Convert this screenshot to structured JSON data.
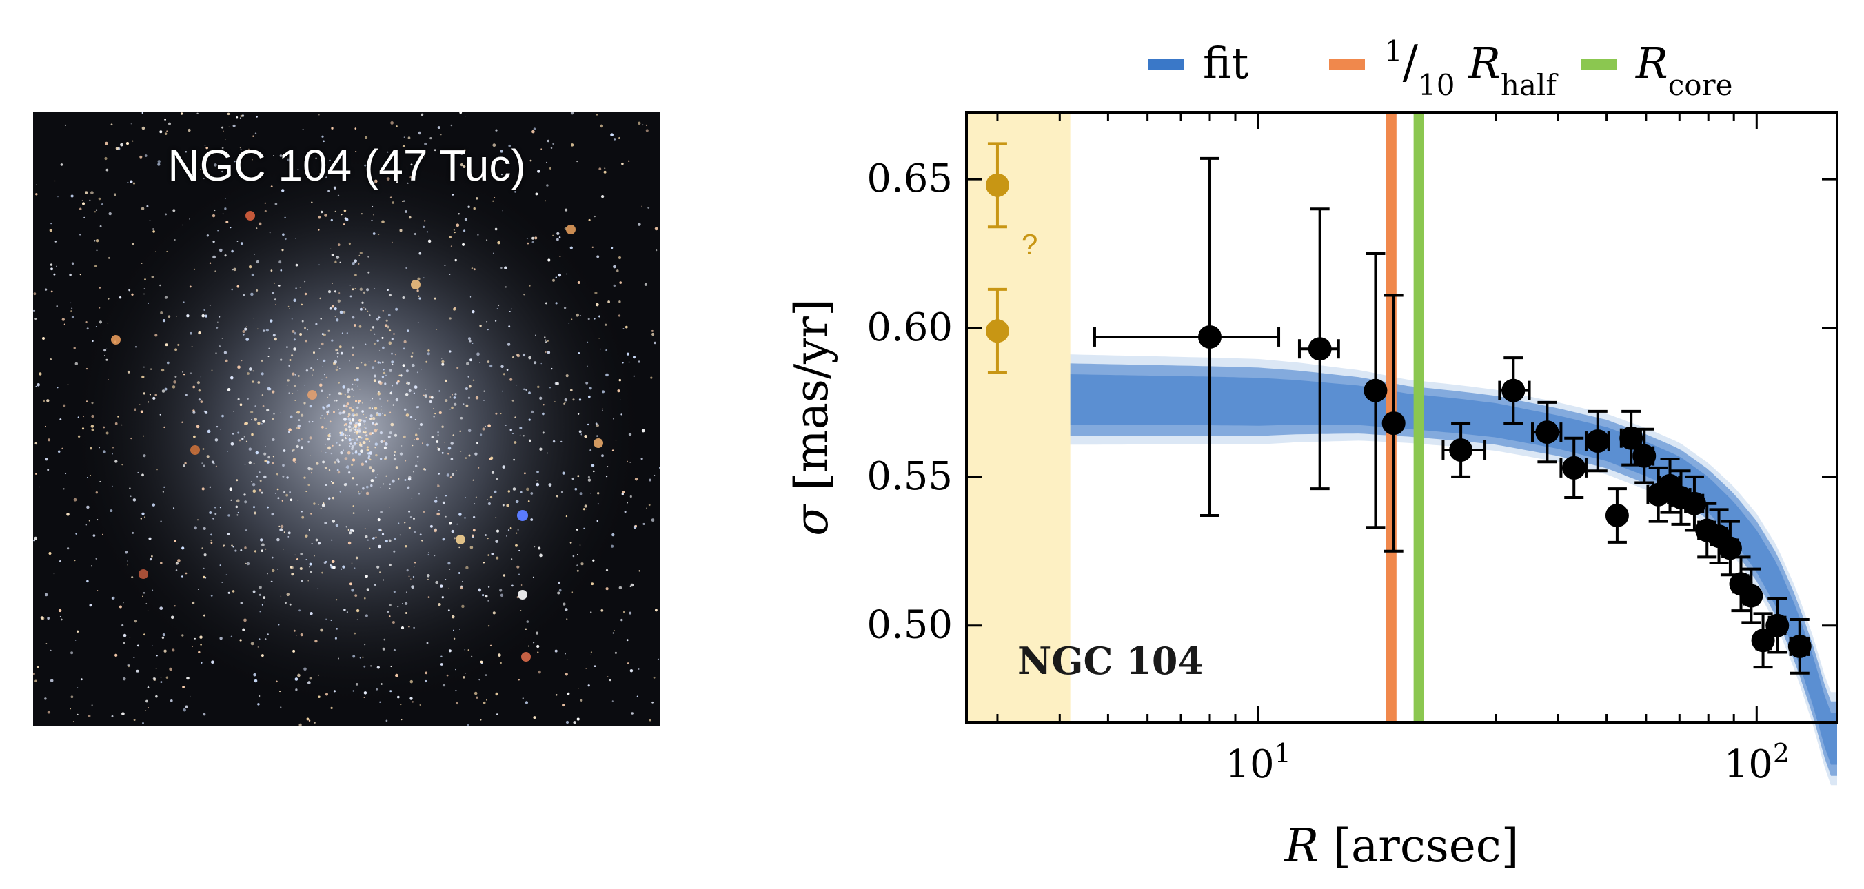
{
  "image_panel": {
    "title": "NGC 104 (47 Tuc)",
    "colors": {
      "background": "#0b0c10",
      "core_glow": "#dfe6f7"
    }
  },
  "chart_data": {
    "type": "scatter",
    "title": "",
    "panel_label": "NGC 104",
    "xlabel_symbol": "R",
    "xlabel_unit": "[arcsec]",
    "ylabel_symbol": "σ",
    "ylabel_unit": "[mas/yr]",
    "xscale": "log",
    "xlim": [
      2.6,
      145
    ],
    "ylim": [
      0.4675,
      0.6725
    ],
    "xticks": [
      {
        "value": 10,
        "base": "10",
        "exp": "1"
      },
      {
        "value": 100,
        "base": "10",
        "exp": "2"
      }
    ],
    "yticks": [
      {
        "value": 0.5,
        "label": "0.50"
      },
      {
        "value": 0.55,
        "label": "0.55"
      },
      {
        "value": 0.6,
        "label": "0.60"
      },
      {
        "value": 0.65,
        "label": "0.65"
      }
    ],
    "legend": {
      "placement": "top-right",
      "entries": [
        {
          "id": "fit",
          "label": "fit",
          "color": "#3a78c8"
        },
        {
          "id": "r_half",
          "label_numer": "1",
          "label_denom": "10",
          "label_symbol": "R",
          "label_sub": "half",
          "color": "#f0884c"
        },
        {
          "id": "r_core",
          "label_symbol": "R",
          "label_sub": "core",
          "color": "#8bc750"
        }
      ]
    },
    "excluded_region": {
      "x_max": 4.2,
      "color": "#fdf0c4"
    },
    "vlines": [
      {
        "name": "r-half-tenth-line",
        "x": 18.5,
        "color": "#f0884c"
      },
      {
        "name": "r-core-line",
        "x": 21.0,
        "color": "#8bc750"
      }
    ],
    "fit": {
      "color": "#3a78c8",
      "center": [
        [
          2.6,
          0.576
        ],
        [
          4,
          0.576
        ],
        [
          8,
          0.5755
        ],
        [
          12,
          0.575
        ],
        [
          16,
          0.574
        ],
        [
          20,
          0.572
        ],
        [
          25,
          0.5705
        ],
        [
          30,
          0.569
        ],
        [
          40,
          0.565
        ],
        [
          50,
          0.561
        ],
        [
          60,
          0.556
        ],
        [
          70,
          0.551
        ],
        [
          80,
          0.544
        ],
        [
          90,
          0.535
        ],
        [
          100,
          0.525
        ],
        [
          110,
          0.513
        ],
        [
          120,
          0.498
        ],
        [
          130,
          0.481
        ],
        [
          140,
          0.462
        ]
      ],
      "halfwidth": [
        [
          2.6,
          0.0125
        ],
        [
          10,
          0.0115
        ],
        [
          20,
          0.0085
        ],
        [
          40,
          0.008
        ],
        [
          80,
          0.0085
        ],
        [
          140,
          0.0125
        ]
      ]
    },
    "points": [
      {
        "x": 8.0,
        "y": 0.597,
        "x_low": 4.7,
        "x_high": 11.0,
        "y_err": 0.06,
        "cap": "y"
      },
      {
        "x": 13.3,
        "y": 0.593,
        "x_low": 12.1,
        "x_high": 14.5,
        "y_err": 0.047,
        "cap": "both"
      },
      {
        "x": 17.2,
        "y": 0.579,
        "y_err": 0.046,
        "cap": "y"
      },
      {
        "x": 18.7,
        "y": 0.568,
        "y_err": 0.043,
        "cap": "y"
      },
      {
        "x": 25.5,
        "y": 0.559,
        "x_low": 23.5,
        "x_high": 28.5,
        "y_err": 0.009,
        "cap": "both"
      },
      {
        "x": 32.5,
        "y": 0.579,
        "x_low": 30.5,
        "x_high": 35.0,
        "y_err": 0.011,
        "cap": "both"
      },
      {
        "x": 38.0,
        "y": 0.565,
        "x_low": 35.5,
        "x_high": 40.5,
        "y_err": 0.01,
        "cap": "both"
      },
      {
        "x": 43.0,
        "y": 0.553,
        "x_low": 40.5,
        "x_high": 45.5,
        "y_err": 0.01,
        "cap": "both"
      },
      {
        "x": 48.0,
        "y": 0.562,
        "x_low": 45.5,
        "x_high": 50.5,
        "y_err": 0.01,
        "cap": "both"
      },
      {
        "x": 52.5,
        "y": 0.537,
        "y_err": 0.009,
        "cap": "y"
      },
      {
        "x": 56.0,
        "y": 0.563,
        "x_low": 53.5,
        "x_high": 58.5,
        "y_err": 0.009,
        "cap": "both"
      },
      {
        "x": 59.5,
        "y": 0.557,
        "x_low": 57.0,
        "x_high": 62.0,
        "y_err": 0.009,
        "cap": "both"
      },
      {
        "x": 63.5,
        "y": 0.544,
        "x_low": 60.5,
        "x_high": 66.5,
        "y_err": 0.009,
        "cap": "both"
      },
      {
        "x": 67.0,
        "y": 0.547,
        "x_low": 64.0,
        "x_high": 70.0,
        "y_err": 0.009,
        "cap": "both"
      },
      {
        "x": 70.5,
        "y": 0.543,
        "x_low": 67.5,
        "x_high": 73.5,
        "y_err": 0.009,
        "cap": "both"
      },
      {
        "x": 75.0,
        "y": 0.541,
        "x_low": 72.0,
        "x_high": 78.0,
        "y_err": 0.009,
        "cap": "both"
      },
      {
        "x": 79.5,
        "y": 0.532,
        "x_low": 76.5,
        "x_high": 82.5,
        "y_err": 0.009,
        "cap": "both"
      },
      {
        "x": 84.0,
        "y": 0.53,
        "x_low": 81.0,
        "x_high": 87.0,
        "y_err": 0.009,
        "cap": "both"
      },
      {
        "x": 88.5,
        "y": 0.526,
        "x_low": 85.5,
        "x_high": 91.5,
        "y_err": 0.009,
        "cap": "both"
      },
      {
        "x": 93.0,
        "y": 0.514,
        "x_low": 90.0,
        "x_high": 96.0,
        "y_err": 0.009,
        "cap": "both"
      },
      {
        "x": 97.5,
        "y": 0.51,
        "x_low": 94.5,
        "x_high": 100.5,
        "y_err": 0.009,
        "cap": "both"
      },
      {
        "x": 103.0,
        "y": 0.495,
        "x_low": 100.0,
        "x_high": 106.5,
        "y_err": 0.009,
        "cap": "both"
      },
      {
        "x": 110.0,
        "y": 0.5,
        "x_low": 106.0,
        "x_high": 114.0,
        "y_err": 0.009,
        "cap": "both"
      },
      {
        "x": 122.0,
        "y": 0.493,
        "x_low": 117.0,
        "x_high": 127.0,
        "y_err": 0.009,
        "cap": "both"
      }
    ],
    "excluded_points": {
      "color": "#c89614",
      "question_label": "?",
      "values": [
        {
          "x": 3.0,
          "y": 0.648,
          "y_err": 0.014
        },
        {
          "x": 3.0,
          "y": 0.599,
          "y_err": 0.014
        }
      ]
    }
  }
}
